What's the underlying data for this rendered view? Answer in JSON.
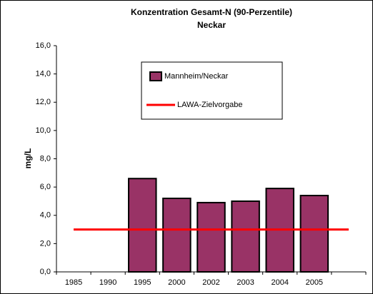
{
  "chart_data": {
    "type": "bar",
    "title": "Konzentration Gesamt-N (90-Perzentile)",
    "subtitle": "Neckar",
    "y_label": "mg/L",
    "categories": [
      "1985",
      "1990",
      "1995",
      "2000",
      "2002",
      "2003",
      "2004",
      "2005",
      null
    ],
    "series": [
      {
        "name": "Mannheim/Neckar",
        "type": "bar",
        "color": "#993366",
        "values": [
          null,
          null,
          6.6,
          5.2,
          4.9,
          5.0,
          5.9,
          5.4,
          null
        ]
      },
      {
        "name": "LAWA-Zielvorgabe",
        "type": "line",
        "color": "#ff0000",
        "values": [
          3.0,
          3.0,
          3.0,
          3.0,
          3.0,
          3.0,
          3.0,
          3.0,
          3.0
        ]
      }
    ],
    "ylim": [
      0,
      16
    ],
    "yticks": [
      {
        "value": 0,
        "label": "0,0"
      },
      {
        "value": 2,
        "label": "2,0"
      },
      {
        "value": 4,
        "label": "4,0"
      },
      {
        "value": 6,
        "label": "6,0"
      },
      {
        "value": 8,
        "label": "8,0"
      },
      {
        "value": 10,
        "label": "10,0"
      },
      {
        "value": 12,
        "label": "12,0"
      },
      {
        "value": 14,
        "label": "14,0"
      },
      {
        "value": 16,
        "label": "16,0"
      }
    ],
    "grid": false
  }
}
